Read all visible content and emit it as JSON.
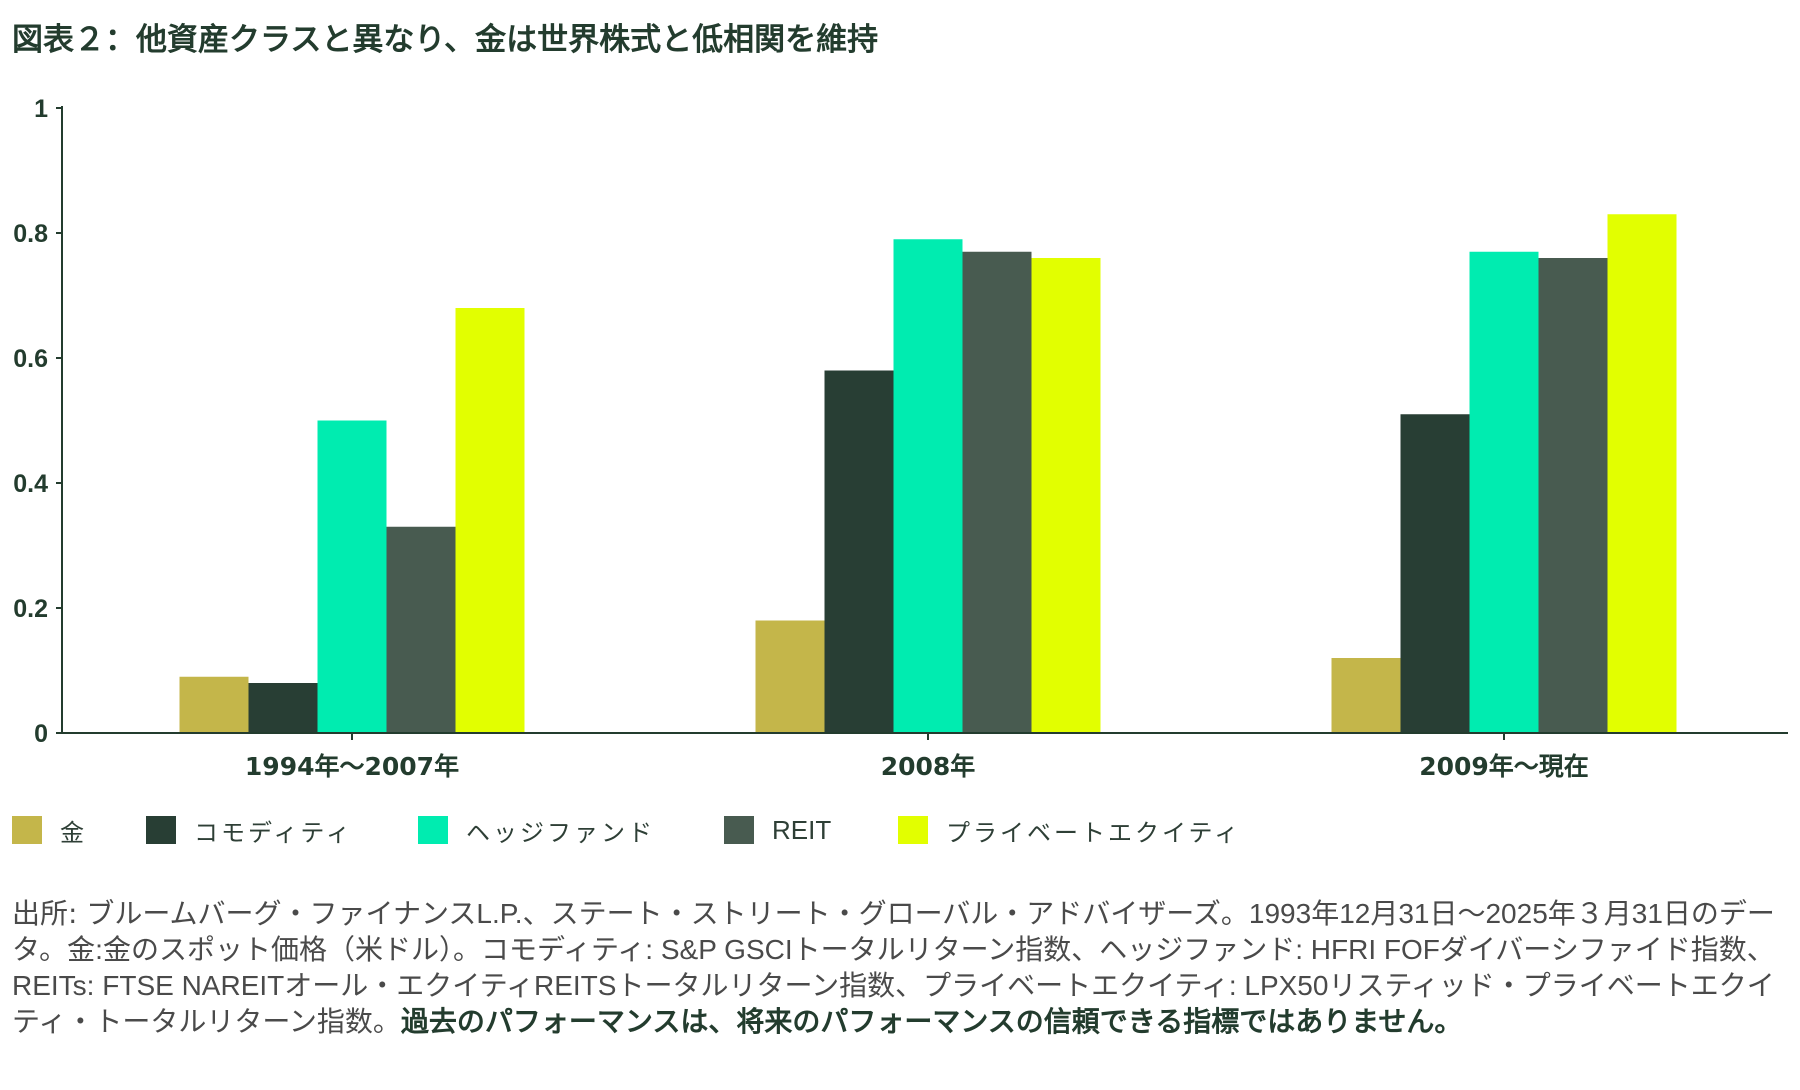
{
  "title": "図表２：他資産クラスと異なり、金は世界株式と低相関を維持",
  "chart_data": {
    "type": "bar",
    "categories": [
      "1994年〜2007年",
      "2008年",
      "2009年〜現在"
    ],
    "series": [
      {
        "name": "金",
        "color": "#c4b64a",
        "values": [
          0.09,
          0.18,
          0.12
        ]
      },
      {
        "name": "コモディティ",
        "color": "#283e34",
        "values": [
          0.08,
          0.58,
          0.51
        ]
      },
      {
        "name": "ヘッジファンド",
        "color": "#00ecb0",
        "values": [
          0.5,
          0.79,
          0.77
        ]
      },
      {
        "name": "REIT",
        "color": "#485b50",
        "values": [
          0.33,
          0.77,
          0.76
        ]
      },
      {
        "name": "プライベートエクイティ",
        "color": "#e2ff00",
        "values": [
          0.68,
          0.76,
          0.83
        ]
      }
    ],
    "yticks": [
      "0",
      "0.2",
      "0.4",
      "0.6",
      "0.8",
      "1"
    ],
    "ylim": [
      0,
      1
    ],
    "grid": false,
    "legend_position": "bottom"
  },
  "footnote": {
    "label": "出所: ",
    "text": "ブルームバーグ・ファイナンスL.P.、ステート・ストリート・グローバル・アドバイザーズ。1993年12月31日〜2025年３月31日のデータ。金:金のスポット価格（米ドル）。コモディティ: S&P GSCIトータルリターン指数、ヘッジファンド: HFRI FOFダイバーシファイド指数、REITs: FTSE NAREITオール・エクイティREITSトータルリターン指数、プライベートエクイティ: LPX50リスティッド・プライベートエクイティ・トータルリターン指数。",
    "disclaimer": "過去のパフォーマンスは、将来のパフォーマンスの信頼できる指標ではありません。"
  },
  "colors": {
    "axis": "#233c2e",
    "text": "#233c2e"
  }
}
